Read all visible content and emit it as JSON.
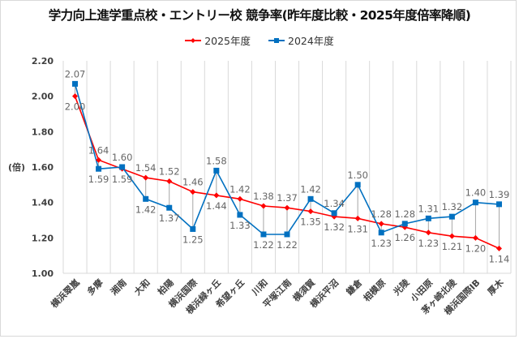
{
  "chart_data": {
    "type": "line",
    "title": "学力向上進学重点校・エントリー校 競争率(昨年度比較・2025年度倍率降順)",
    "xlabel": "",
    "ylabel": "(倍)",
    "ylim": [
      1.0,
      2.2
    ],
    "yticks": [
      "1.00",
      "1.20",
      "1.40",
      "1.60",
      "1.80",
      "2.00",
      "2.20"
    ],
    "ytick_values": [
      1.0,
      1.2,
      1.4,
      1.6,
      1.8,
      2.0,
      2.2
    ],
    "grid": "vertical",
    "legend_position": "top",
    "categories": [
      "横浜翠嵐",
      "多摩",
      "湘南",
      "大和",
      "柏陽",
      "横浜国際",
      "横浜緑ヶ丘",
      "希望ヶ丘",
      "川和",
      "平塚江南",
      "横須賀",
      "横浜平沼",
      "鎌倉",
      "相模原",
      "光陵",
      "小田原",
      "茅ヶ崎北陵",
      "横浜国際IB",
      "厚木"
    ],
    "series": [
      {
        "name": "2025年度",
        "color": "#ff0000",
        "marker": "diamond",
        "values": [
          2.0,
          1.64,
          1.59,
          1.54,
          1.52,
          1.46,
          1.44,
          1.42,
          1.38,
          1.37,
          1.35,
          1.32,
          1.31,
          1.28,
          1.26,
          1.23,
          1.21,
          1.2,
          1.14
        ],
        "labels": [
          "2.00",
          "1.64",
          "1.59",
          "1.54",
          "1.52",
          "1.46",
          "1.44",
          "1.42",
          "1.38",
          "1.37",
          "1.35",
          "1.32",
          "1.31",
          "1.28",
          "1.26",
          "1.23",
          "1.21",
          "1.20",
          "1.14"
        ]
      },
      {
        "name": "2024年度",
        "color": "#0070c0",
        "marker": "square",
        "values": [
          2.07,
          1.59,
          1.6,
          1.42,
          1.37,
          1.25,
          1.58,
          1.33,
          1.22,
          1.22,
          1.42,
          1.34,
          1.5,
          1.23,
          1.28,
          1.31,
          1.32,
          1.4,
          1.39
        ],
        "labels": [
          "2.07",
          "1.59",
          "1.60",
          "1.42",
          "1.37",
          "1.25",
          "1.58",
          "1.33",
          "1.22",
          "1.22",
          "1.42",
          "1.34",
          "1.50",
          "1.23",
          "1.28",
          "1.31",
          "1.32",
          "1.40",
          "1.39"
        ]
      }
    ],
    "high_low_lines": true
  }
}
